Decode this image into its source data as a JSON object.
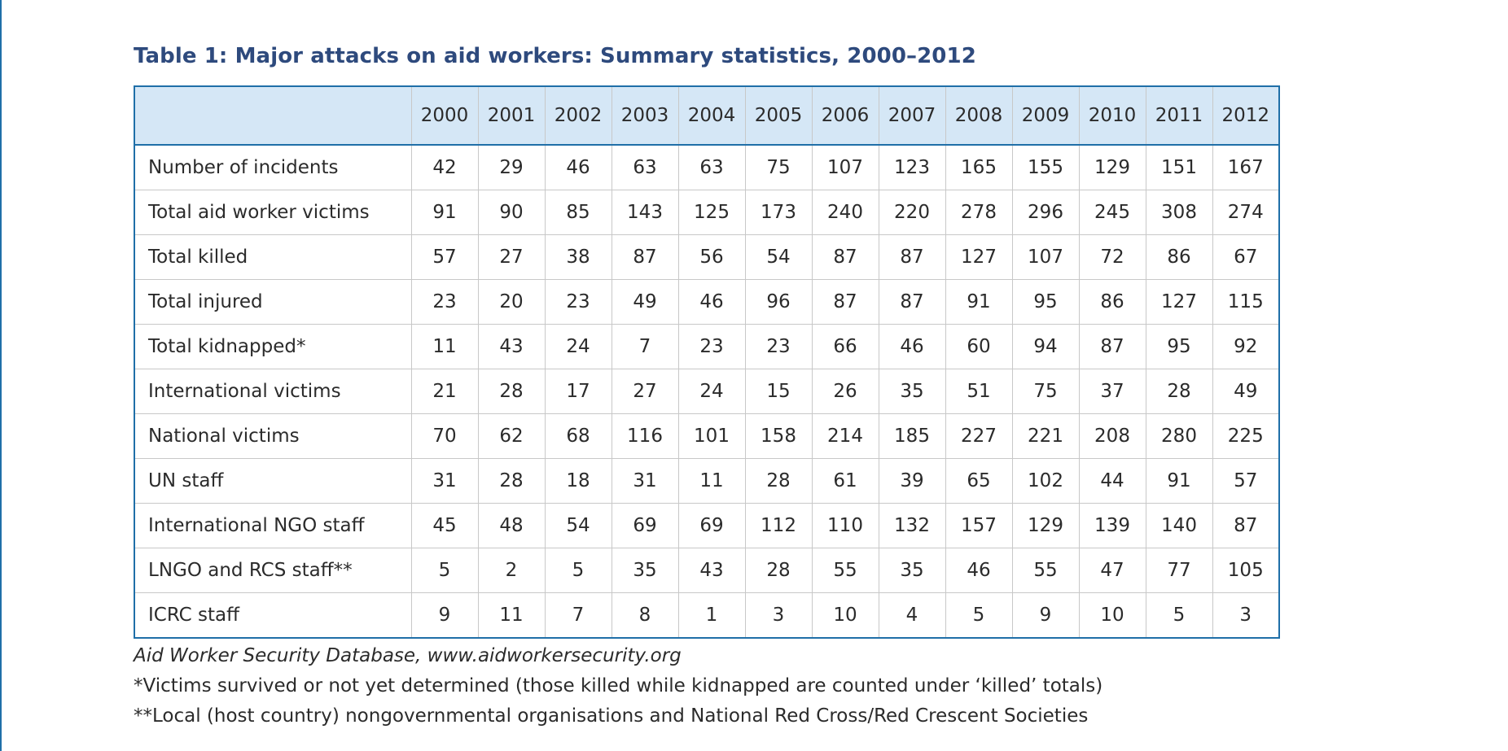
{
  "title": "Table 1: Major attacks on aid workers: Summary statistics, 2000–2012",
  "table": {
    "years": [
      "2000",
      "2001",
      "2002",
      "2003",
      "2004",
      "2005",
      "2006",
      "2007",
      "2008",
      "2009",
      "2010",
      "2011",
      "2012"
    ],
    "rows": [
      {
        "label": "Number of incidents",
        "values": [
          "42",
          "29",
          "46",
          "63",
          "63",
          "75",
          "107",
          "123",
          "165",
          "155",
          "129",
          "151",
          "167"
        ]
      },
      {
        "label": "Total aid worker victims",
        "values": [
          "91",
          "90",
          "85",
          "143",
          "125",
          "173",
          "240",
          "220",
          "278",
          "296",
          "245",
          "308",
          "274"
        ]
      },
      {
        "label": "Total killed",
        "values": [
          "57",
          "27",
          "38",
          "87",
          "56",
          "54",
          "87",
          "87",
          "127",
          "107",
          "72",
          "86",
          "67"
        ]
      },
      {
        "label": "Total injured",
        "values": [
          "23",
          "20",
          "23",
          "49",
          "46",
          "96",
          "87",
          "87",
          "91",
          "95",
          "86",
          "127",
          "115"
        ]
      },
      {
        "label": "Total kidnapped*",
        "values": [
          "11",
          "43",
          "24",
          "7",
          "23",
          "23",
          "66",
          "46",
          "60",
          "94",
          "87",
          "95",
          "92"
        ]
      },
      {
        "label": "International victims",
        "values": [
          "21",
          "28",
          "17",
          "27",
          "24",
          "15",
          "26",
          "35",
          "51",
          "75",
          "37",
          "28",
          "49"
        ]
      },
      {
        "label": "National victims",
        "values": [
          "70",
          "62",
          "68",
          "116",
          "101",
          "158",
          "214",
          "185",
          "227",
          "221",
          "208",
          "280",
          "225"
        ]
      },
      {
        "label": "UN staff",
        "values": [
          "31",
          "28",
          "18",
          "31",
          "11",
          "28",
          "61",
          "39",
          "65",
          "102",
          "44",
          "91",
          "57"
        ]
      },
      {
        "label": "International NGO staff",
        "values": [
          "45",
          "48",
          "54",
          "69",
          "69",
          "112",
          "110",
          "132",
          "157",
          "129",
          "139",
          "140",
          "87"
        ]
      },
      {
        "label": "LNGO and RCS staff**",
        "values": [
          "5",
          "2",
          "5",
          "35",
          "43",
          "28",
          "55",
          "35",
          "46",
          "55",
          "47",
          "77",
          "105"
        ]
      },
      {
        "label": "ICRC staff",
        "values": [
          "9",
          "11",
          "7",
          "8",
          "1",
          "3",
          "10",
          "4",
          "5",
          "9",
          "10",
          "5",
          "3"
        ]
      }
    ]
  },
  "notes": {
    "source": "Aid Worker Security Database, www.aidworkersecurity.org",
    "footnote1": "*Victims survived or not yet determined (those killed while kidnapped are counted under ‘killed’ totals)",
    "footnote2": "**Local (host country) nongovernmental organisations and National Red Cross/Red Crescent Societies"
  },
  "colors": {
    "title": "#2e4a7d",
    "table_border": "#1f6fa8",
    "header_fill": "#d5e7f6",
    "grid": "#c8c8c8"
  }
}
